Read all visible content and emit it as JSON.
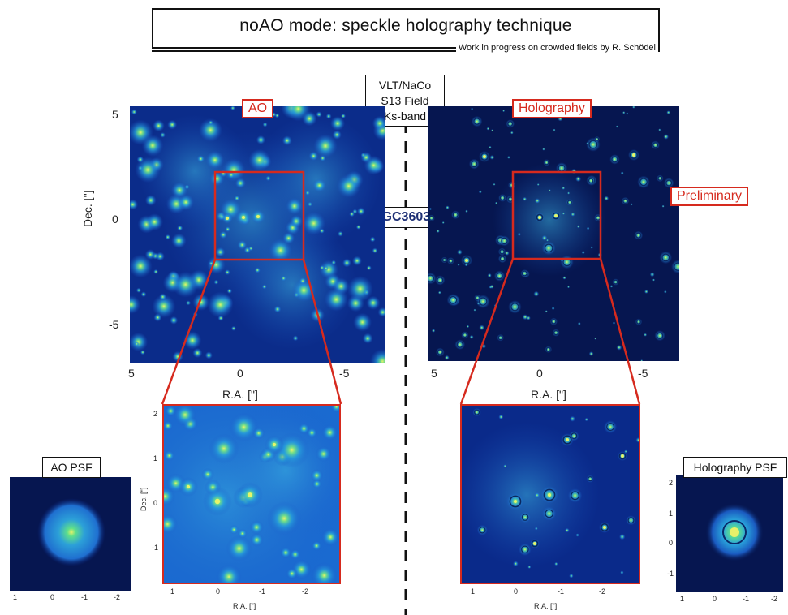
{
  "header": {
    "title": "noAO mode: speckle holography technique",
    "credit": "Work in progress on crowded fields by R. Schödel"
  },
  "center": {
    "instrument_lines": [
      "VLT/NaCo",
      "S13 Field",
      "Ks-band"
    ],
    "target": "NGC3603"
  },
  "left_panel": {
    "label": "AO",
    "xlabel": "R.A. [\"]",
    "ylabel": "Dec. [\"]",
    "xticks": [
      "5",
      "0",
      "-5"
    ],
    "yticks": [
      "5",
      "0",
      "-5"
    ]
  },
  "right_panel": {
    "label": "Holography",
    "note": "Preliminary",
    "xlabel": "R.A. [\"]",
    "xticks": [
      "5",
      "0",
      "-5"
    ]
  },
  "zoom_left": {
    "xlabel": "R.A. [\"]",
    "ylabel": "Dec. [\"]",
    "xticks": [
      "1",
      "0",
      "-1",
      "-2"
    ],
    "yticks": [
      "2",
      "1",
      "0",
      "-1"
    ]
  },
  "zoom_right": {
    "xlabel": "R.A. [\"]",
    "xticks": [
      "1",
      "0",
      "-1",
      "-2"
    ]
  },
  "psf_left": {
    "label": "AO PSF",
    "xticks": [
      "1",
      "0",
      "-1",
      "-2"
    ]
  },
  "psf_right": {
    "label": "Holography PSF",
    "xticks": [
      "1",
      "0",
      "-1",
      "-2"
    ],
    "yticks": [
      "2",
      "1",
      "0",
      "-1"
    ]
  },
  "colors": {
    "highlight_box": "#d62a1e",
    "target_text": "#1d2f75",
    "image_background": "#061650",
    "star_core": "#e6f56a"
  }
}
